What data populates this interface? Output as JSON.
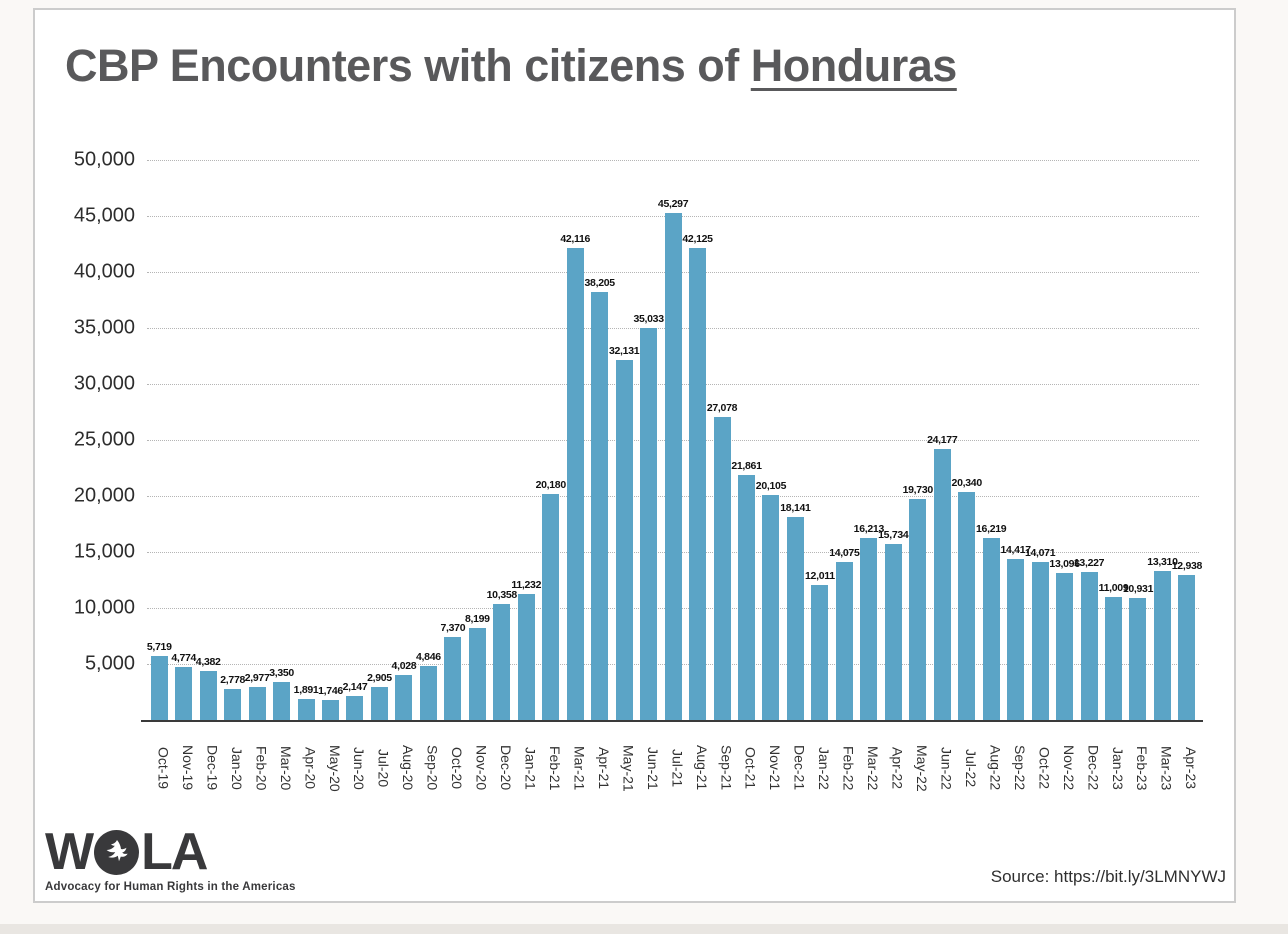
{
  "page": {
    "background_color": "#faf8f6",
    "slide_background": "#ffffff",
    "slide_border_color": "#cccccc"
  },
  "title": {
    "prefix": "CBP Encounters with citizens of ",
    "highlight": "Honduras"
  },
  "colors": {
    "bar": "#5ba4c6",
    "title_text": "#59595b",
    "axis_text": "#2d2d2d",
    "bar_label_text": "#111111",
    "gridline": "#b5b5b5",
    "axis_line": "#3a3a3a",
    "logo": "#39393b"
  },
  "chart_data": {
    "type": "bar",
    "title": "CBP Encounters with citizens of Honduras",
    "categories": [
      "Oct-19",
      "Nov-19",
      "Dec-19",
      "Jan-20",
      "Feb-20",
      "Mar-20",
      "Apr-20",
      "May-20",
      "Jun-20",
      "Jul-20",
      "Aug-20",
      "Sep-20",
      "Oct-20",
      "Nov-20",
      "Dec-20",
      "Jan-21",
      "Feb-21",
      "Mar-21",
      "Apr-21",
      "May-21",
      "Jun-21",
      "Jul-21",
      "Aug-21",
      "Sep-21",
      "Oct-21",
      "Nov-21",
      "Dec-21",
      "Jan-22",
      "Feb-22",
      "Mar-22",
      "Apr-22",
      "May-22",
      "Jun-22",
      "Jul-22",
      "Aug-22",
      "Sep-22",
      "Oct-22",
      "Nov-22",
      "Dec-22",
      "Jan-23",
      "Feb-23",
      "Mar-23",
      "Apr-23"
    ],
    "values": [
      5719,
      4774,
      4382,
      2778,
      2977,
      3350,
      1891,
      1746,
      2147,
      2905,
      4028,
      4846,
      7370,
      8199,
      10358,
      11232,
      20180,
      42116,
      38205,
      32131,
      35033,
      45297,
      42125,
      27078,
      21861,
      20105,
      18141,
      12011,
      14075,
      16213,
      15734,
      19730,
      24177,
      20340,
      16219,
      14417,
      14071,
      13096,
      13227,
      11009,
      10931,
      13310,
      12938
    ],
    "xlabel": "",
    "ylabel": "",
    "ylim": [
      0,
      50000
    ],
    "ytick_interval": 5000,
    "ytick_labels": [
      "5,000",
      "10,000",
      "15,000",
      "20,000",
      "25,000",
      "30,000",
      "35,000",
      "40,000",
      "45,000",
      "50,000"
    ],
    "grid": "horizontal-dotted",
    "legend": "none",
    "bar_value_labels_shown": true
  },
  "footer": {
    "source_text": "Source: https://bit.ly/3LMNYWJ",
    "logo": {
      "wordmark_left": "W",
      "wordmark_right": "LA",
      "dove_icon": "dove-in-circle-icon",
      "tagline": "Advocacy for Human Rights in the Americas"
    }
  }
}
